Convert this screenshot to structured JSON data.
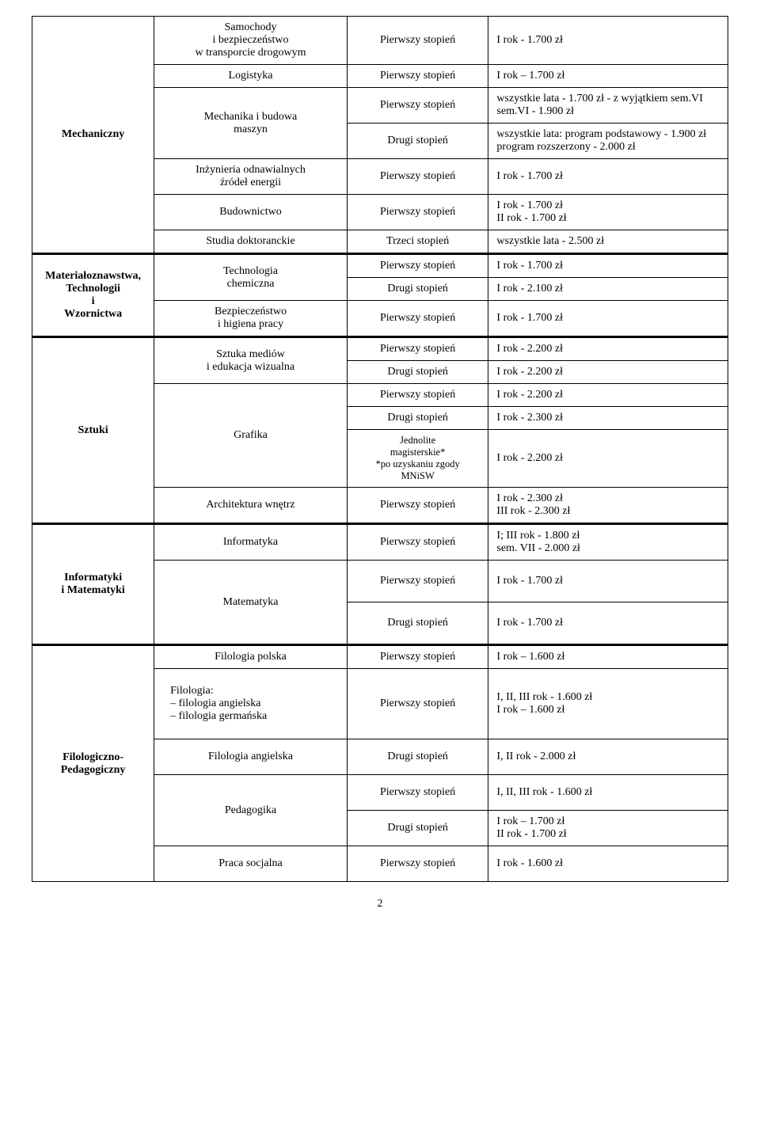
{
  "mech": {
    "dept": "Mechaniczny",
    "r1": {
      "c2": "Samochody\ni bezpieczeństwo\nw transporcie drogowym",
      "c3": "Pierwszy stopień",
      "c4": "I rok - 1.700 zł"
    },
    "r2": {
      "c2": "Logistyka",
      "c3": "Pierwszy stopień",
      "c4": "I rok – 1.700 zł"
    },
    "r3a": {
      "c2": "Mechanika  i budowa\nmaszyn",
      "c3": "Pierwszy stopień",
      "c4": "wszystkie lata - 1.700 zł - z wyjątkiem sem.VI\nsem.VI - 1.900 zł"
    },
    "r3b": {
      "c3": "Drugi stopień",
      "c4": "wszystkie lata:  program podstawowy - 1.900 zł\n                          program rozszerzony - 2.000 zł"
    },
    "r4": {
      "c2": "Inżynieria odnawialnych\nźródeł energii",
      "c3": "Pierwszy stopień",
      "c4": "I rok - 1.700 zł"
    },
    "r5": {
      "c2": "Budownictwo",
      "c3": "Pierwszy stopień",
      "c4": "I rok  - 1.700 zł\nII rok - 1.700 zł"
    },
    "r6": {
      "c2": "Studia doktoranckie",
      "c3": "Trzeci stopień",
      "c4": "wszystkie lata - 2.500 zł"
    }
  },
  "mat": {
    "dept": "Materiałoznawstwa,\nTechnologii\ni\nWzornictwa",
    "r1a": {
      "c2": "Technologia\nchemiczna",
      "c3": "Pierwszy stopień",
      "c4": "I rok - 1.700 zł"
    },
    "r1b": {
      "c3": "Drugi stopień",
      "c4": "I rok - 2.100 zł"
    },
    "r2": {
      "c2": "Bezpieczeństwo\ni higiena pracy",
      "c3": "Pierwszy stopień",
      "c4": "I rok - 1.700 zł"
    }
  },
  "szt": {
    "dept": "Sztuki",
    "r1a": {
      "c2": "Sztuka mediów\ni edukacja wizualna",
      "c3": "Pierwszy stopień",
      "c4": "I rok - 2.200 zł"
    },
    "r1b": {
      "c3": "Drugi stopień",
      "c4": "I rok - 2.200 zł"
    },
    "r2a": {
      "c2": "Grafika",
      "c3": "Pierwszy stopień",
      "c4": "I rok - 2.200 zł"
    },
    "r2b": {
      "c3": "Drugi stopień",
      "c4": "I rok - 2.300 zł"
    },
    "r2c": {
      "c3": "Jednolite\nmagisterskie*\n*po uzyskaniu zgody\nMNiSW",
      "c4": "I rok - 2.200 zł"
    },
    "r3": {
      "c2": "Architektura wnętrz",
      "c3": "Pierwszy stopień",
      "c4": "I  rok - 2.300 zł\nIII rok - 2.300 zł"
    }
  },
  "inf": {
    "dept": "Informatyki\ni Matematyki",
    "r1": {
      "c2": "Informatyka",
      "c3": "Pierwszy stopień",
      "c4": "I; III rok  - 1.800 zł\nsem. VII - 2.000 zł"
    },
    "r2a": {
      "c2": "Matematyka",
      "c3": "Pierwszy stopień",
      "c4": "I  rok - 1.700 zł"
    },
    "r2b": {
      "c3": "Drugi stopień",
      "c4": "I  rok - 1.700 zł"
    }
  },
  "fil": {
    "dept": "Filologiczno-\nPedagogiczny",
    "r1": {
      "c2": "Filologia polska",
      "c3": "Pierwszy stopień",
      "c4": "I  rok – 1.600 zł"
    },
    "r2": {
      "c2": "Filologia:\n– filologia angielska\n– filologia germańska",
      "c3": "Pierwszy stopień",
      "c4": "I, II, III rok - 1.600 zł\nI  rok – 1.600 zł"
    },
    "r3": {
      "c2": "Filologia angielska",
      "c3": "Drugi stopień",
      "c4": "I, II rok - 2.000 zł"
    },
    "r4a": {
      "c2": "Pedagogika",
      "c3": "Pierwszy stopień",
      "c4": "I, II, III rok  - 1.600 zł"
    },
    "r4b": {
      "c3": "Drugi stopień",
      "c4": "I rok – 1.700 zł\nII rok -   1.700 zł"
    },
    "r5": {
      "c2": "Praca socjalna",
      "c3": "Pierwszy stopień",
      "c4": "I rok - 1.600 zł"
    }
  },
  "pagenum": "2"
}
